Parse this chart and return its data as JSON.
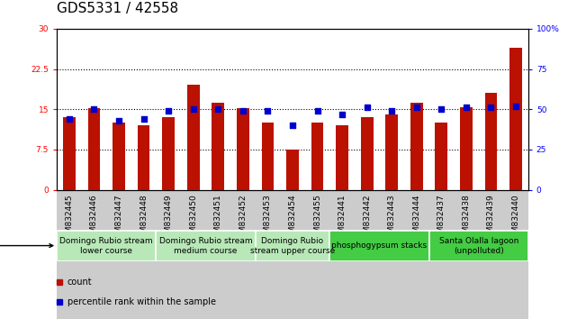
{
  "title": "GDS5331 / 42558",
  "categories": [
    "GSM832445",
    "GSM832446",
    "GSM832447",
    "GSM832448",
    "GSM832449",
    "GSM832450",
    "GSM832451",
    "GSM832452",
    "GSM832453",
    "GSM832454",
    "GSM832455",
    "GSM832441",
    "GSM832442",
    "GSM832443",
    "GSM832444",
    "GSM832437",
    "GSM832438",
    "GSM832439",
    "GSM832440"
  ],
  "count_values": [
    13.5,
    15.2,
    12.5,
    12.0,
    13.5,
    19.5,
    16.2,
    15.2,
    12.5,
    7.5,
    12.5,
    12.0,
    13.5,
    14.0,
    16.2,
    12.5,
    15.3,
    18.0,
    26.5
  ],
  "percentile_values": [
    44,
    50,
    43,
    44,
    49,
    50,
    50,
    49,
    49,
    40,
    49,
    47,
    51,
    49,
    51,
    50,
    51,
    51,
    52
  ],
  "groups": [
    {
      "label": "Domingo Rubio stream\nlower course",
      "start": 0,
      "end": 4,
      "color": "#b8e8b8"
    },
    {
      "label": "Domingo Rubio stream\nmedium course",
      "start": 4,
      "end": 8,
      "color": "#b8e8b8"
    },
    {
      "label": "Domingo Rubio\nstream upper course",
      "start": 8,
      "end": 11,
      "color": "#b8e8b8"
    },
    {
      "label": "phosphogypsum stacks",
      "start": 11,
      "end": 15,
      "color": "#44cc44"
    },
    {
      "label": "Santa Olalla lagoon\n(unpolluted)",
      "start": 15,
      "end": 19,
      "color": "#44cc44"
    }
  ],
  "left_ylim": [
    0,
    30
  ],
  "right_ylim": [
    0,
    100
  ],
  "left_yticks": [
    0,
    7.5,
    15,
    22.5,
    30
  ],
  "right_yticks": [
    0,
    25,
    50,
    75,
    100
  ],
  "left_yticklabels": [
    "0",
    "7.5",
    "15",
    "22.5",
    "30"
  ],
  "right_yticklabels": [
    "0",
    "25",
    "50",
    "75",
    "100%"
  ],
  "bar_color": "#bb1100",
  "dot_color": "#0000cc",
  "title_fontsize": 11,
  "tick_fontsize": 6.5,
  "group_label_fontsize": 6.5,
  "bar_width": 0.5,
  "dot_size": 14,
  "gridline_yticks": [
    7.5,
    15,
    22.5
  ]
}
